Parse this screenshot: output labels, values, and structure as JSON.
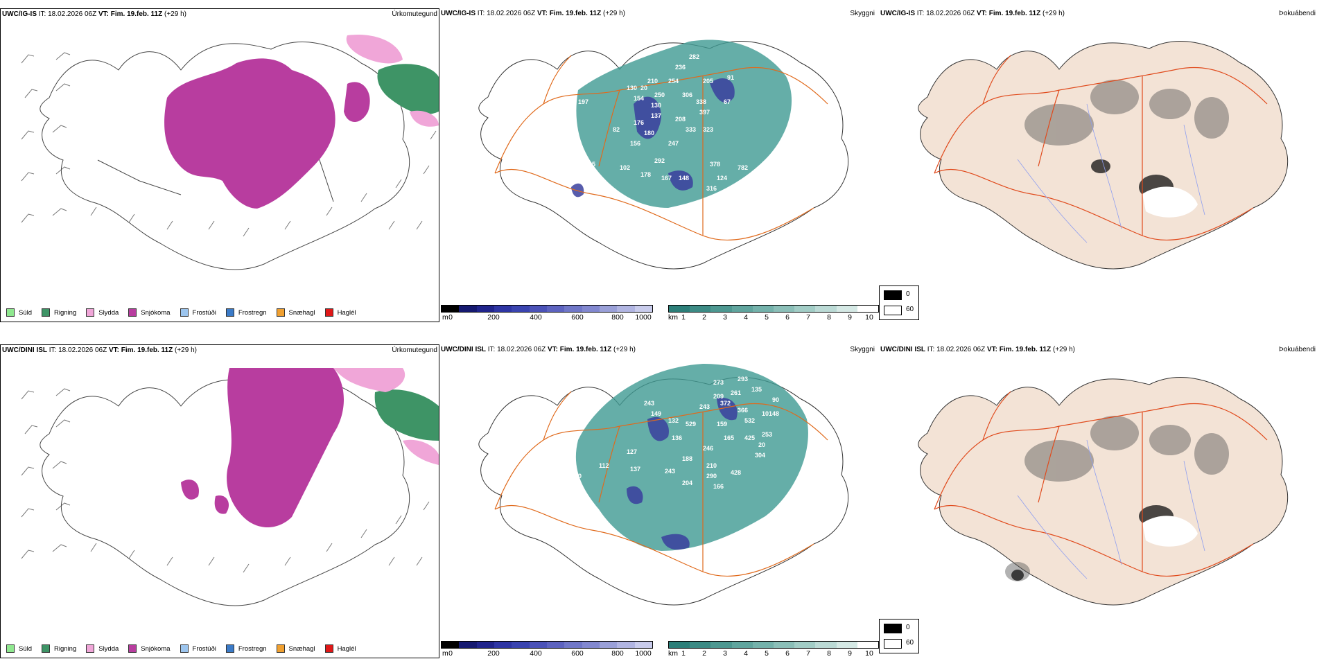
{
  "colors": {
    "Súld": "#8fe88f",
    "Rigning": "#3e9466",
    "Slydda": "#f0a6d8",
    "Snjókoma": "#b83d9f",
    "Frostúði": "#9cc5ee",
    "Frostregn": "#3b7bc8",
    "Snæhagl": "#f0a030",
    "Haglél": "#e01818",
    "land_fog": "#f3e3d6",
    "roads": "#e06a1c"
  },
  "top": {
    "model_a": "UWC/IG-IS",
    "model_b": "UWC/IG-IS",
    "model_c": "UWC/IG-IS",
    "it": "IT: 18.02.2026 06Z",
    "vt_label": "VT:",
    "vt": "Fim. 19.feb. 11Z",
    "lead": "(+29 h)"
  },
  "bottom": {
    "model_a": "UWC/DINI ISL",
    "model_b": "UWC/DINI ISL",
    "model_c": "UWC/DINI ISL",
    "it": "IT: 18.02.2026 06Z",
    "vt_label": "VT:",
    "vt": "Fim. 19.feb. 11Z",
    "lead": "(+29 h)"
  },
  "products": {
    "precip_type": "Úrkomutegund",
    "visibility": "Skyggni",
    "fog": "Þokuábendi"
  },
  "precip_legend": [
    "Súld",
    "Rigning",
    "Slydda",
    "Snjókoma",
    "Frostúði",
    "Frostregn",
    "Snæhagl",
    "Haglél"
  ],
  "height_bar": {
    "unit": "m",
    "ticks": [
      "0",
      "200",
      "400",
      "600",
      "800",
      "1000"
    ]
  },
  "vis_bar": {
    "unit": "km",
    "ticks": [
      "1",
      "2",
      "3",
      "4",
      "5",
      "6",
      "7",
      "8",
      "9",
      "10"
    ]
  },
  "fog_key": {
    "low": "0",
    "high": "60"
  },
  "ceiling_labels_top": [
    "282",
    "236",
    "254",
    "205",
    "91",
    "210",
    "306",
    "130",
    "20",
    "250",
    "338",
    "67",
    "197",
    "154",
    "397",
    "130",
    "137",
    "208",
    "323",
    "176",
    "82",
    "333",
    "180",
    "156",
    "247",
    "105",
    "292",
    "378",
    "102",
    "178",
    "167",
    "148",
    "782",
    "74",
    "124",
    "316",
    "43"
  ],
  "ceiling_labels_bottom": [
    "273",
    "293",
    "261",
    "135",
    "90",
    "209",
    "243",
    "372",
    "48",
    "120",
    "243",
    "366",
    "532",
    "149",
    "101",
    "132",
    "529",
    "159",
    "165",
    "425",
    "136",
    "253",
    "127",
    "246",
    "20",
    "112",
    "188",
    "304",
    "137",
    "243",
    "290",
    "204",
    "210",
    "428",
    "166",
    "120"
  ]
}
